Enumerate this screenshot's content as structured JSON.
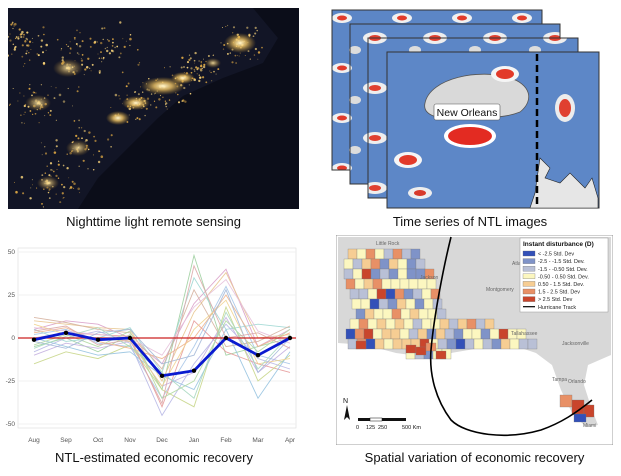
{
  "captions": {
    "ntl": "Nighttime light remote  sensing",
    "timeseries": "Time series of NTL images",
    "recovery": "NTL-estimated economic recovery",
    "spatial": "Spatial variation of economic recovery"
  },
  "timeseries_label": "New Orleans",
  "chart_data": {
    "type": "line",
    "categories": [
      "Aug",
      "Sep",
      "Oct",
      "Nov",
      "Dec",
      "Jan",
      "Feb",
      "Mar",
      "Apr"
    ],
    "ylim": [
      -50,
      50
    ],
    "yticks": [
      50,
      25,
      0,
      -25,
      -50
    ],
    "highlight_series": {
      "values": [
        -1,
        3,
        -1,
        0,
        -22,
        -19,
        0,
        -10,
        0
      ],
      "color": "#0a1ad0"
    },
    "reference_line": {
      "y": 0,
      "color": "#cc2020"
    },
    "background_series": [
      [
        5,
        10,
        8,
        0,
        -15,
        20,
        40,
        -5,
        5
      ],
      [
        -5,
        0,
        -8,
        2,
        -30,
        48,
        -10,
        -5,
        0
      ],
      [
        2,
        5,
        -3,
        -5,
        -35,
        -5,
        30,
        -10,
        -15
      ],
      [
        10,
        8,
        6,
        5,
        -25,
        15,
        38,
        0,
        2
      ],
      [
        -10,
        -3,
        -6,
        -2,
        -28,
        -20,
        12,
        -20,
        -5
      ],
      [
        0,
        3,
        2,
        1,
        -40,
        10,
        -8,
        -15,
        -20
      ],
      [
        5,
        -2,
        0,
        6,
        -20,
        35,
        5,
        8,
        6
      ],
      [
        -15,
        -8,
        -12,
        -4,
        -30,
        -40,
        18,
        -25,
        -10
      ],
      [
        3,
        6,
        -2,
        -6,
        -12,
        0,
        25,
        -5,
        3
      ],
      [
        -8,
        0,
        4,
        -3,
        -45,
        -15,
        8,
        -12,
        -18
      ],
      [
        12,
        9,
        5,
        3,
        -18,
        28,
        -5,
        -2,
        7
      ],
      [
        0,
        -5,
        -10,
        -8,
        -22,
        -30,
        5,
        -35,
        -8
      ],
      [
        6,
        4,
        2,
        0,
        -10,
        18,
        34,
        4,
        -3
      ],
      [
        -4,
        2,
        -5,
        4,
        -35,
        -25,
        10,
        -8,
        5
      ],
      [
        8,
        2,
        0,
        -2,
        -28,
        5,
        22,
        -15,
        -12
      ],
      [
        -2,
        -6,
        3,
        5,
        -15,
        -10,
        28,
        -20,
        0
      ],
      [
        4,
        7,
        -4,
        -1,
        -38,
        42,
        0,
        3,
        -6
      ],
      [
        -6,
        1,
        6,
        -5,
        -20,
        -35,
        15,
        -18,
        2
      ]
    ]
  },
  "map": {
    "legend_title": "Instant disturbance (D)",
    "legend_items": [
      {
        "label": "< -2.5 Std. Dev",
        "color": "#3350b8"
      },
      {
        "label": "-2.5 - -1.5 Std. Dev.",
        "color": "#7f93c8"
      },
      {
        "label": "-1.5 - -0.50 Std. Dev.",
        "color": "#b9c0d6"
      },
      {
        "label": "-0.50 - 0.50 Std. Dev.",
        "color": "#fcf7c0"
      },
      {
        "label": "0.50 - 1.5 Std. Dev.",
        "color": "#f6cd93"
      },
      {
        "label": "1.5 - 2.5 Std. Dev",
        "color": "#e89066"
      },
      {
        "label": "> 2.5 Std. Dev",
        "color": "#c9452c"
      },
      {
        "label": "Hurricane Track",
        "color": "#000000"
      }
    ],
    "scale_labels": [
      "0",
      "125",
      "250",
      "500 Km"
    ],
    "north_label": "N",
    "city_labels": [
      "Little Rock",
      "Atlanta",
      "Jackson",
      "Montgomery",
      "Tallahassee",
      "Jacksonville",
      "Orlando",
      "Tampa",
      "Miami"
    ]
  }
}
